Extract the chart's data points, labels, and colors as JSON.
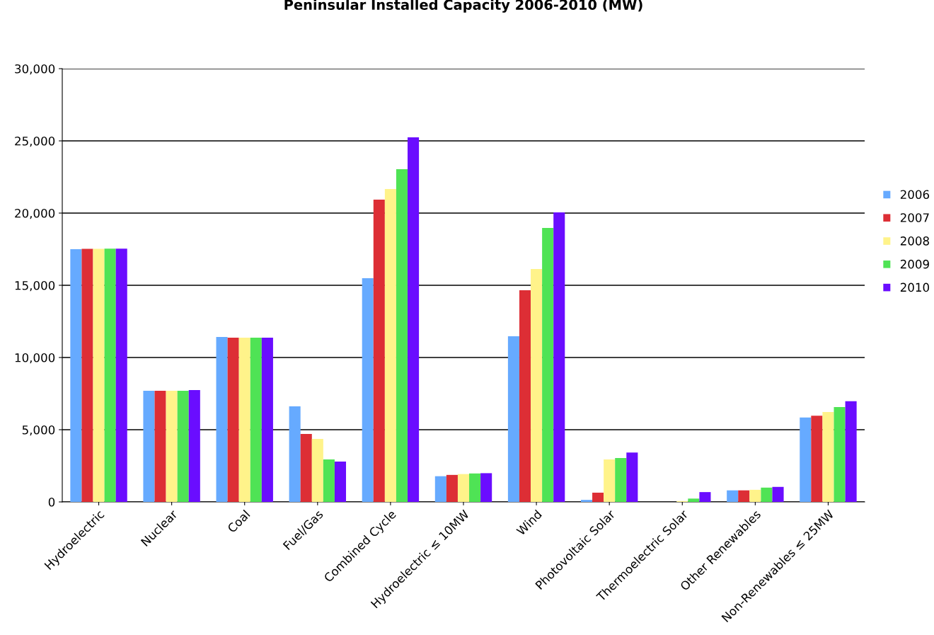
{
  "chart_data": {
    "type": "bar",
    "title": "Peninsular Installed Capacity 2006-2010 (MW)",
    "categories": [
      "Hydroelectric",
      "Nuclear",
      "Coal",
      "Fuel/Gas",
      "Combined Cycle",
      "Hydroelectric ≤ 10MW",
      "Wind",
      "Photovoltaic Solar",
      "Thermoelectric Solar",
      "Other Renewables",
      "Non-Renewables ≤ 25MW"
    ],
    "series": [
      {
        "name": "2006",
        "color": "#66aaff",
        "values": [
          17500,
          7700,
          11420,
          6620,
          15490,
          1780,
          11470,
          140,
          0,
          800,
          5850
        ]
      },
      {
        "name": "2007",
        "color": "#dd2e35",
        "values": [
          17520,
          7700,
          11370,
          4700,
          20930,
          1870,
          14660,
          640,
          0,
          800,
          5970
        ]
      },
      {
        "name": "2008",
        "color": "#fff38a",
        "values": [
          17530,
          7700,
          11370,
          4360,
          21670,
          1930,
          16130,
          2940,
          60,
          840,
          6230
        ]
      },
      {
        "name": "2009",
        "color": "#4fe355",
        "values": [
          17540,
          7700,
          11370,
          2940,
          23040,
          1970,
          18970,
          3040,
          230,
          990,
          6570
        ]
      },
      {
        "name": "2010",
        "color": "#6a0dff",
        "values": [
          17540,
          7750,
          11370,
          2800,
          25240,
          1990,
          20050,
          3420,
          680,
          1040,
          6970
        ]
      }
    ],
    "ylim": [
      0,
      30000
    ],
    "yticks": [
      {
        "value": 0,
        "label": "0"
      },
      {
        "value": 5000,
        "label": "5,000"
      },
      {
        "value": 10000,
        "label": "10,000"
      },
      {
        "value": 15000,
        "label": "15,000"
      },
      {
        "value": 20000,
        "label": "20,000"
      },
      {
        "value": 25000,
        "label": "25,000"
      },
      {
        "value": 30000,
        "label": "30,000"
      }
    ],
    "grid": "y",
    "legend": "right"
  }
}
